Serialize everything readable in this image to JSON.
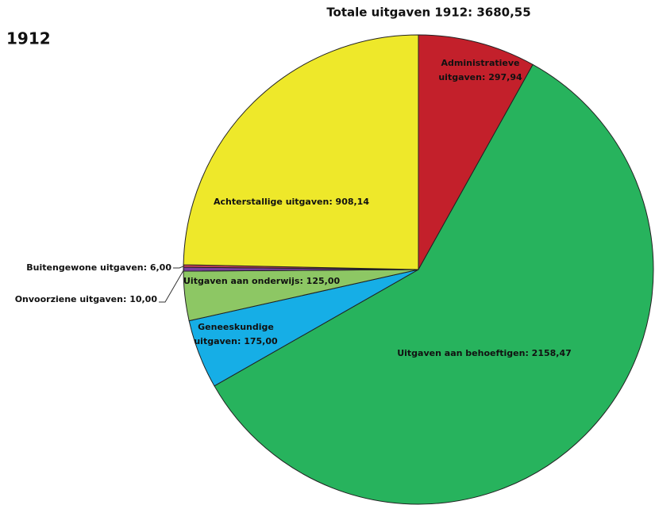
{
  "chart_data": {
    "type": "pie",
    "title": "Totale uitgaven 1912: 3680,55",
    "subtitle": "1912",
    "values": [
      297.94,
      2158.47,
      175.0,
      125.0,
      10.0,
      6.0,
      908.14
    ],
    "value_labels": [
      "Administratieve uitgaven: 297,94",
      "Uitgaven aan behoeftigen: 2158,47",
      "Geneeskundige uitgaven: 175,00",
      "Uitgaven aan onderwijs: 125,00",
      "Onvoorziene uitgaven: 10,00",
      "Buitengewone uitgaven: 6,00",
      "Achterstallige uitgaven: 908,14"
    ],
    "colors": [
      "#c3202b",
      "#27b35d",
      "#16aee6",
      "#8dc764",
      "#7b3fa0",
      "#d0405a",
      "#eee82a"
    ]
  }
}
